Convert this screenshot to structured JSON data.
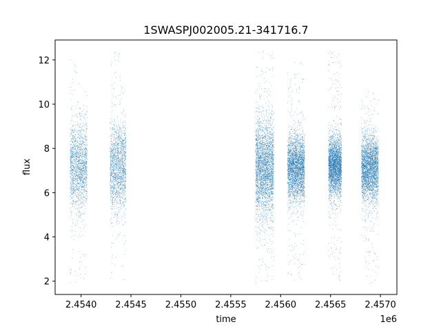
{
  "chart_data": {
    "type": "scatter",
    "title": "1SWASPJ002005.21-341716.7",
    "xlabel": "time",
    "ylabel": "flux",
    "x_offset_label": "1e6",
    "xlim": [
      2453740,
      2457165
    ],
    "ylim": [
      1.4,
      12.9
    ],
    "x_ticks": [
      2454000,
      2454500,
      2455000,
      2455500,
      2456000,
      2456500,
      2457000
    ],
    "x_tick_labels": [
      "2.4540",
      "2.4545",
      "2.4550",
      "2.4555",
      "2.4560",
      "2.4565",
      "2.4570"
    ],
    "y_ticks": [
      2,
      4,
      6,
      8,
      10,
      12
    ],
    "y_tick_labels": [
      "2",
      "4",
      "6",
      "8",
      "10",
      "12"
    ],
    "grid": false,
    "marker_color": "#1f77b4",
    "series": [
      {
        "observing_seasons": [
          {
            "x_range": [
              2453890,
              2454060
            ],
            "flux_center": 7.2,
            "flux_spread": 1.0,
            "flux_range": [
              1.9,
              12.2
            ],
            "density": "medium"
          },
          {
            "x_range": [
              2454290,
              2454450
            ],
            "flux_center": 7.2,
            "flux_spread": 1.0,
            "flux_range": [
              2.0,
              12.4
            ],
            "density": "medium"
          },
          {
            "x_range": [
              2455750,
              2455930
            ],
            "flux_center": 7.1,
            "flux_spread": 1.1,
            "flux_range": [
              1.9,
              12.4
            ],
            "density": "high"
          },
          {
            "x_range": [
              2456070,
              2456240
            ],
            "flux_center": 7.1,
            "flux_spread": 0.75,
            "flux_range": [
              2.0,
              11.9
            ],
            "density": "high"
          },
          {
            "x_range": [
              2456480,
              2456610
            ],
            "flux_center": 7.2,
            "flux_spread": 0.65,
            "flux_range": [
              2.0,
              12.4
            ],
            "density": "high"
          },
          {
            "x_range": [
              2456810,
              2456980
            ],
            "flux_center": 7.1,
            "flux_spread": 0.75,
            "flux_range": [
              1.9,
              10.6
            ],
            "density": "high"
          }
        ]
      }
    ]
  }
}
